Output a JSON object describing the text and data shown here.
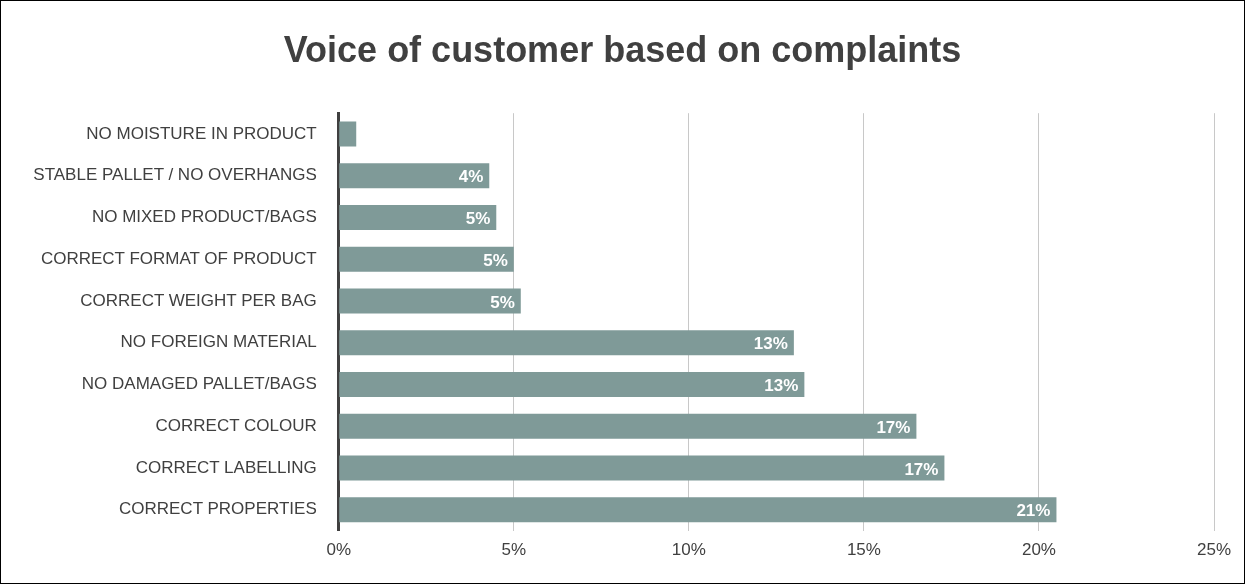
{
  "chart_data": {
    "type": "bar",
    "orientation": "horizontal",
    "title": "Voice of customer based on complaints",
    "categories": [
      "NO MOISTURE IN PRODUCT",
      "STABLE PALLET / NO OVERHANGS",
      "NO MIXED PRODUCT/BAGS",
      "CORRECT FORMAT OF PRODUCT",
      "CORRECT WEIGHT PER BAG",
      "NO FOREIGN MATERIAL",
      "NO DAMAGED PALLET/BAGS",
      "CORRECT COLOUR",
      "CORRECT LABELLING",
      "CORRECT PROPERTIES"
    ],
    "values": [
      0.5,
      4.3,
      4.5,
      5.0,
      5.2,
      13.0,
      13.3,
      16.5,
      17.3,
      20.5
    ],
    "value_labels": [
      null,
      "4%",
      "5%",
      "5%",
      "5%",
      "13%",
      "13%",
      "17%",
      "17%",
      "21%"
    ],
    "color": "#7f9a98",
    "xlim": [
      0,
      25
    ],
    "xticks": [
      {
        "value": 0,
        "label": "0%"
      },
      {
        "value": 5,
        "label": "5%"
      },
      {
        "value": 10,
        "label": "10%"
      },
      {
        "value": 15,
        "label": "15%"
      },
      {
        "value": 20,
        "label": "20%"
      },
      {
        "value": 25,
        "label": "25%"
      }
    ],
    "grid": "x",
    "legend": false
  }
}
